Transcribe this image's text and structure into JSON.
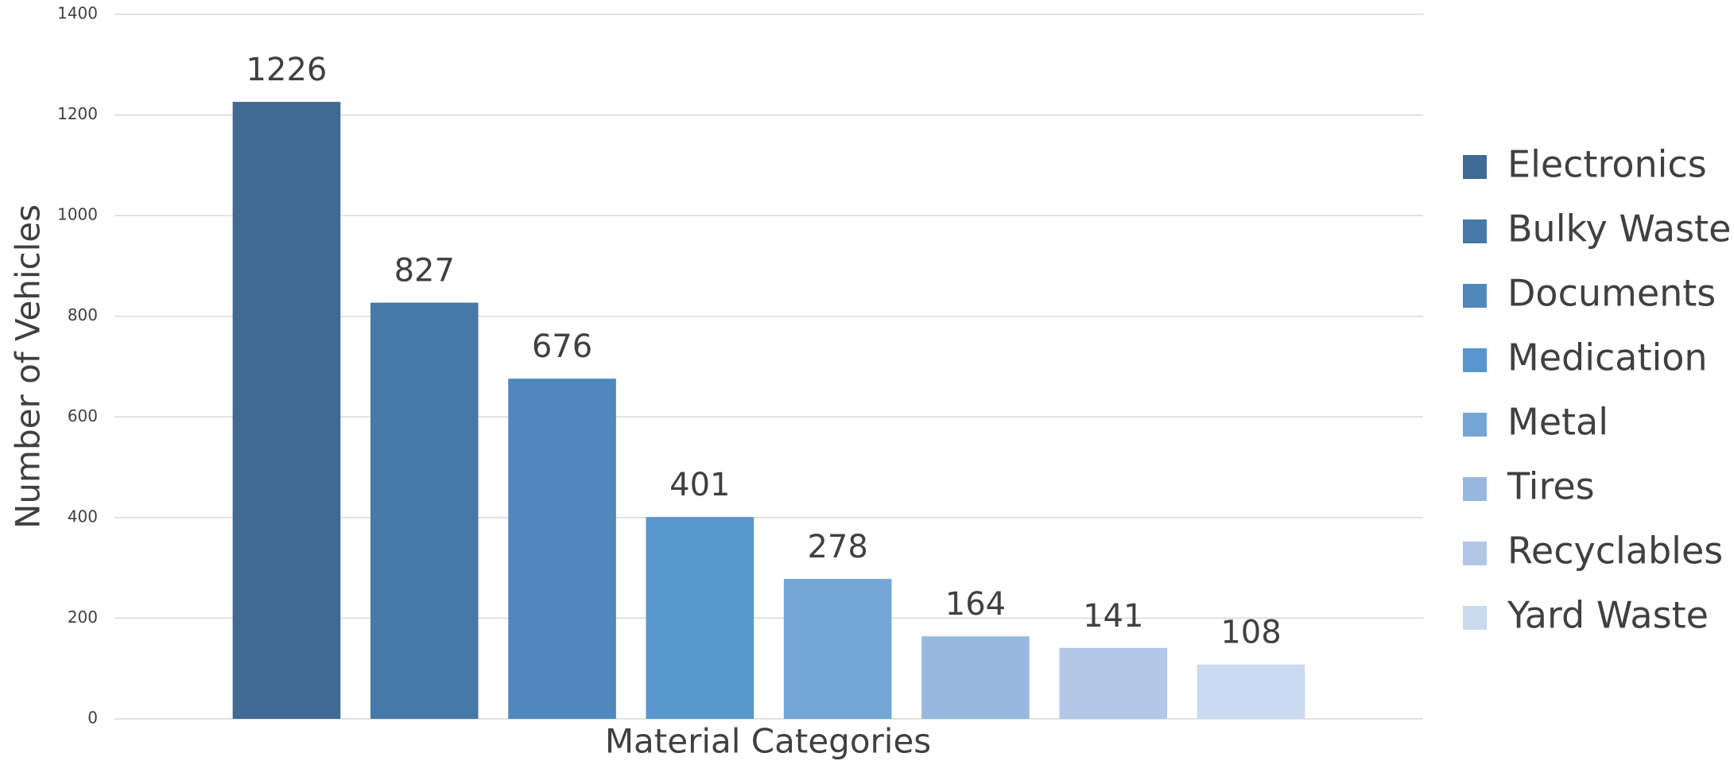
{
  "chart_data": {
    "type": "bar",
    "xlabel": "Material Categories",
    "ylabel": "Number of Vehicles",
    "categories": [
      null
    ],
    "series": [
      {
        "name": "Electronics",
        "color": "#3e6a93",
        "values": [
          1226
        ]
      },
      {
        "name": "Bulky Waste",
        "color": "#4679a8",
        "values": [
          827
        ]
      },
      {
        "name": "Documents",
        "color": "#4f88bd",
        "values": [
          676
        ]
      },
      {
        "name": "Medication",
        "color": "#5896cd",
        "values": [
          401
        ]
      },
      {
        "name": "Metal",
        "color": "#73a5d7",
        "values": [
          278
        ]
      },
      {
        "name": "Tires",
        "color": "#98b8df",
        "values": [
          164
        ]
      },
      {
        "name": "Recyclables",
        "color": "#b2c8e6",
        "values": [
          141
        ]
      },
      {
        "name": "Yard Waste",
        "color": "#c9d9ef",
        "values": [
          108
        ]
      }
    ],
    "ylim": [
      0,
      1400
    ],
    "yticks": [
      0,
      200,
      400,
      600,
      800,
      1000,
      1200,
      1400
    ],
    "grid": true,
    "legend": "right"
  }
}
